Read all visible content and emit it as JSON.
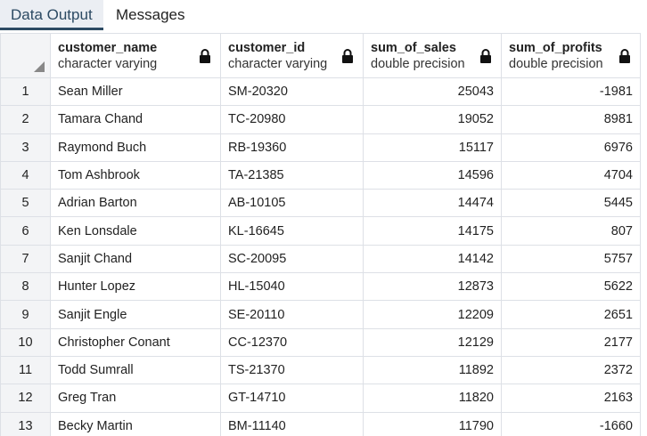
{
  "tabs": [
    {
      "label": "Data Output",
      "active": true
    },
    {
      "label": "Messages",
      "active": false
    }
  ],
  "columns": [
    {
      "name": "customer_name",
      "type": "character varying"
    },
    {
      "name": "customer_id",
      "type": "character varying"
    },
    {
      "name": "sum_of_sales",
      "type": "double precision"
    },
    {
      "name": "sum_of_profits",
      "type": "double precision"
    }
  ],
  "rows": [
    {
      "n": "1",
      "customer_name": "Sean Miller",
      "customer_id": "SM-20320",
      "sum_of_sales": "25043",
      "sum_of_profits": "-1981"
    },
    {
      "n": "2",
      "customer_name": "Tamara Chand",
      "customer_id": "TC-20980",
      "sum_of_sales": "19052",
      "sum_of_profits": "8981"
    },
    {
      "n": "3",
      "customer_name": "Raymond Buch",
      "customer_id": "RB-19360",
      "sum_of_sales": "15117",
      "sum_of_profits": "6976"
    },
    {
      "n": "4",
      "customer_name": "Tom Ashbrook",
      "customer_id": "TA-21385",
      "sum_of_sales": "14596",
      "sum_of_profits": "4704"
    },
    {
      "n": "5",
      "customer_name": "Adrian Barton",
      "customer_id": "AB-10105",
      "sum_of_sales": "14474",
      "sum_of_profits": "5445"
    },
    {
      "n": "6",
      "customer_name": "Ken Lonsdale",
      "customer_id": "KL-16645",
      "sum_of_sales": "14175",
      "sum_of_profits": "807"
    },
    {
      "n": "7",
      "customer_name": "Sanjit Chand",
      "customer_id": "SC-20095",
      "sum_of_sales": "14142",
      "sum_of_profits": "5757"
    },
    {
      "n": "8",
      "customer_name": "Hunter Lopez",
      "customer_id": "HL-15040",
      "sum_of_sales": "12873",
      "sum_of_profits": "5622"
    },
    {
      "n": "9",
      "customer_name": "Sanjit Engle",
      "customer_id": "SE-20110",
      "sum_of_sales": "12209",
      "sum_of_profits": "2651"
    },
    {
      "n": "10",
      "customer_name": "Christopher Conant",
      "customer_id": "CC-12370",
      "sum_of_sales": "12129",
      "sum_of_profits": "2177"
    },
    {
      "n": "11",
      "customer_name": "Todd Sumrall",
      "customer_id": "TS-21370",
      "sum_of_sales": "11892",
      "sum_of_profits": "2372"
    },
    {
      "n": "12",
      "customer_name": "Greg Tran",
      "customer_id": "GT-14710",
      "sum_of_sales": "11820",
      "sum_of_profits": "2163"
    },
    {
      "n": "13",
      "customer_name": "Becky Martin",
      "customer_id": "BM-11140",
      "sum_of_sales": "11790",
      "sum_of_profits": "-1660"
    }
  ],
  "icons": {
    "column_lock": "lock-icon",
    "select_all": "select-all-icon"
  }
}
